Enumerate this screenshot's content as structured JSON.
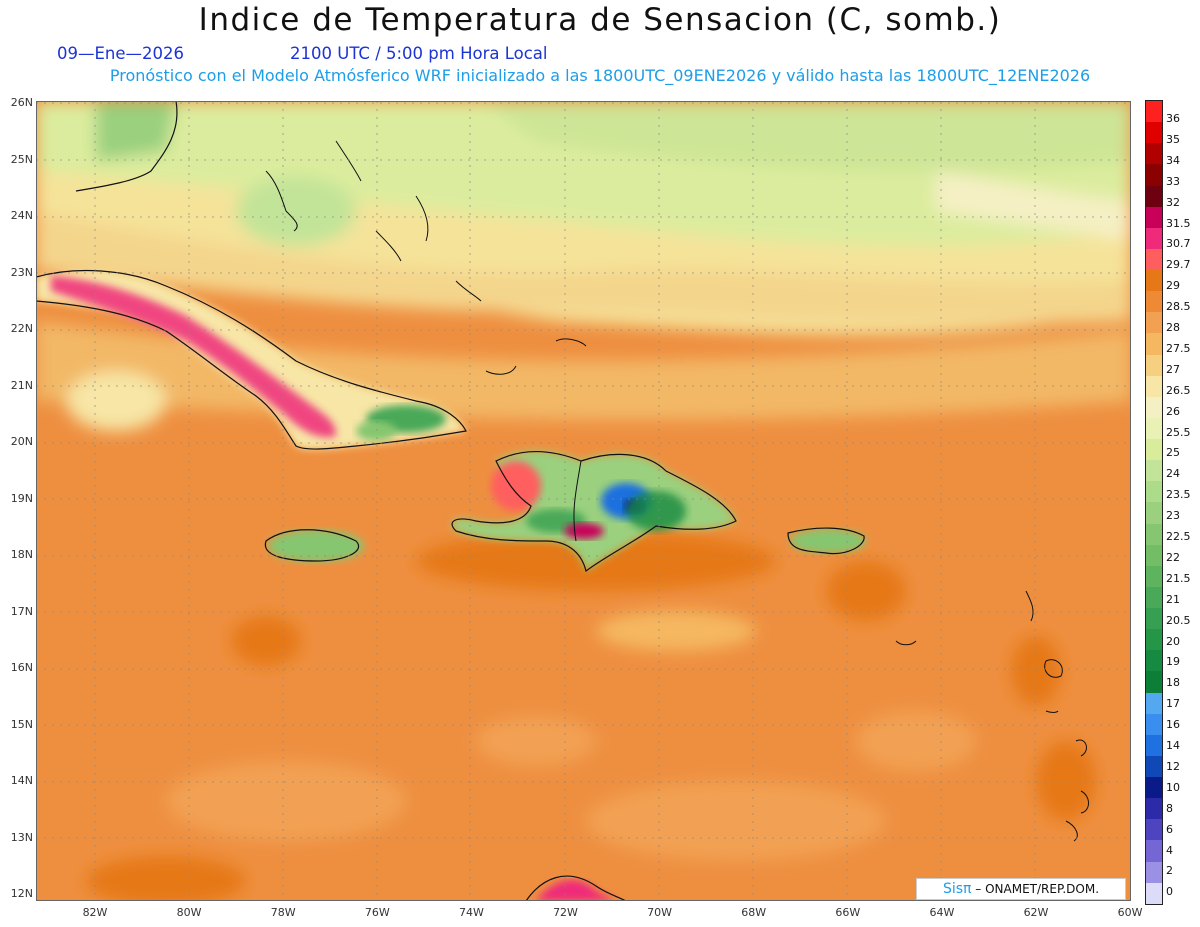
{
  "title": "Indice de Temperatura de Sensacion (C, somb.)",
  "date_line": "09—Ene—2026",
  "time_line": "2100 UTC / 5:00 pm Hora Local",
  "forecast_line": "Pronóstico con el Modelo Atmósferico WRF inicializado a las 1800UTC_09ENE2026 y válido hasta las  1800UTC_12ENE2026",
  "lat_labels": [
    "26N",
    "25N",
    "24N",
    "23N",
    "22N",
    "21N",
    "20N",
    "19N",
    "18N",
    "17N",
    "16N",
    "15N",
    "14N",
    "13N",
    "12N"
  ],
  "lon_labels": [
    "82W",
    "80W",
    "78W",
    "76W",
    "74W",
    "72W",
    "70W",
    "68W",
    "66W",
    "64W",
    "62W",
    "60W"
  ],
  "colorbar": {
    "labels": [
      "36",
      "35",
      "34",
      "33",
      "32",
      "31.5",
      "30.7",
      "29.7",
      "29",
      "28.5",
      "28",
      "27.5",
      "27",
      "26.5",
      "26",
      "25.5",
      "25",
      "24",
      "23.5",
      "23",
      "22.5",
      "22",
      "21.5",
      "21",
      "20.5",
      "20",
      "19",
      "18",
      "17",
      "16",
      "14",
      "12",
      "10",
      "8",
      "6",
      "4",
      "2",
      "0"
    ],
    "colors": [
      "#ff2020",
      "#e00000",
      "#b00000",
      "#8b0000",
      "#6e0010",
      "#c8005a",
      "#ef2a7a",
      "#ff5e5e",
      "#e67818",
      "#ee8a36",
      "#f2a052",
      "#f5b860",
      "#f6d080",
      "#f7e6a6",
      "#f5f0c4",
      "#e9f2b4",
      "#d8ec9c",
      "#c2e498",
      "#acdb8a",
      "#9ad07e",
      "#86c670",
      "#72bd66",
      "#5eb35e",
      "#4aa958",
      "#379f52",
      "#259548",
      "#168a40",
      "#0c7e38",
      "#54a8f0",
      "#3a8ef0",
      "#1f70e0",
      "#1048b8",
      "#0a1a88",
      "#2c2aa8",
      "#4e44c0",
      "#7466d4",
      "#9a90e4",
      "#dcdcf8"
    ]
  },
  "credit": {
    "brand": "Sisπ",
    "text": " – ONAMET/REP.DOM."
  }
}
